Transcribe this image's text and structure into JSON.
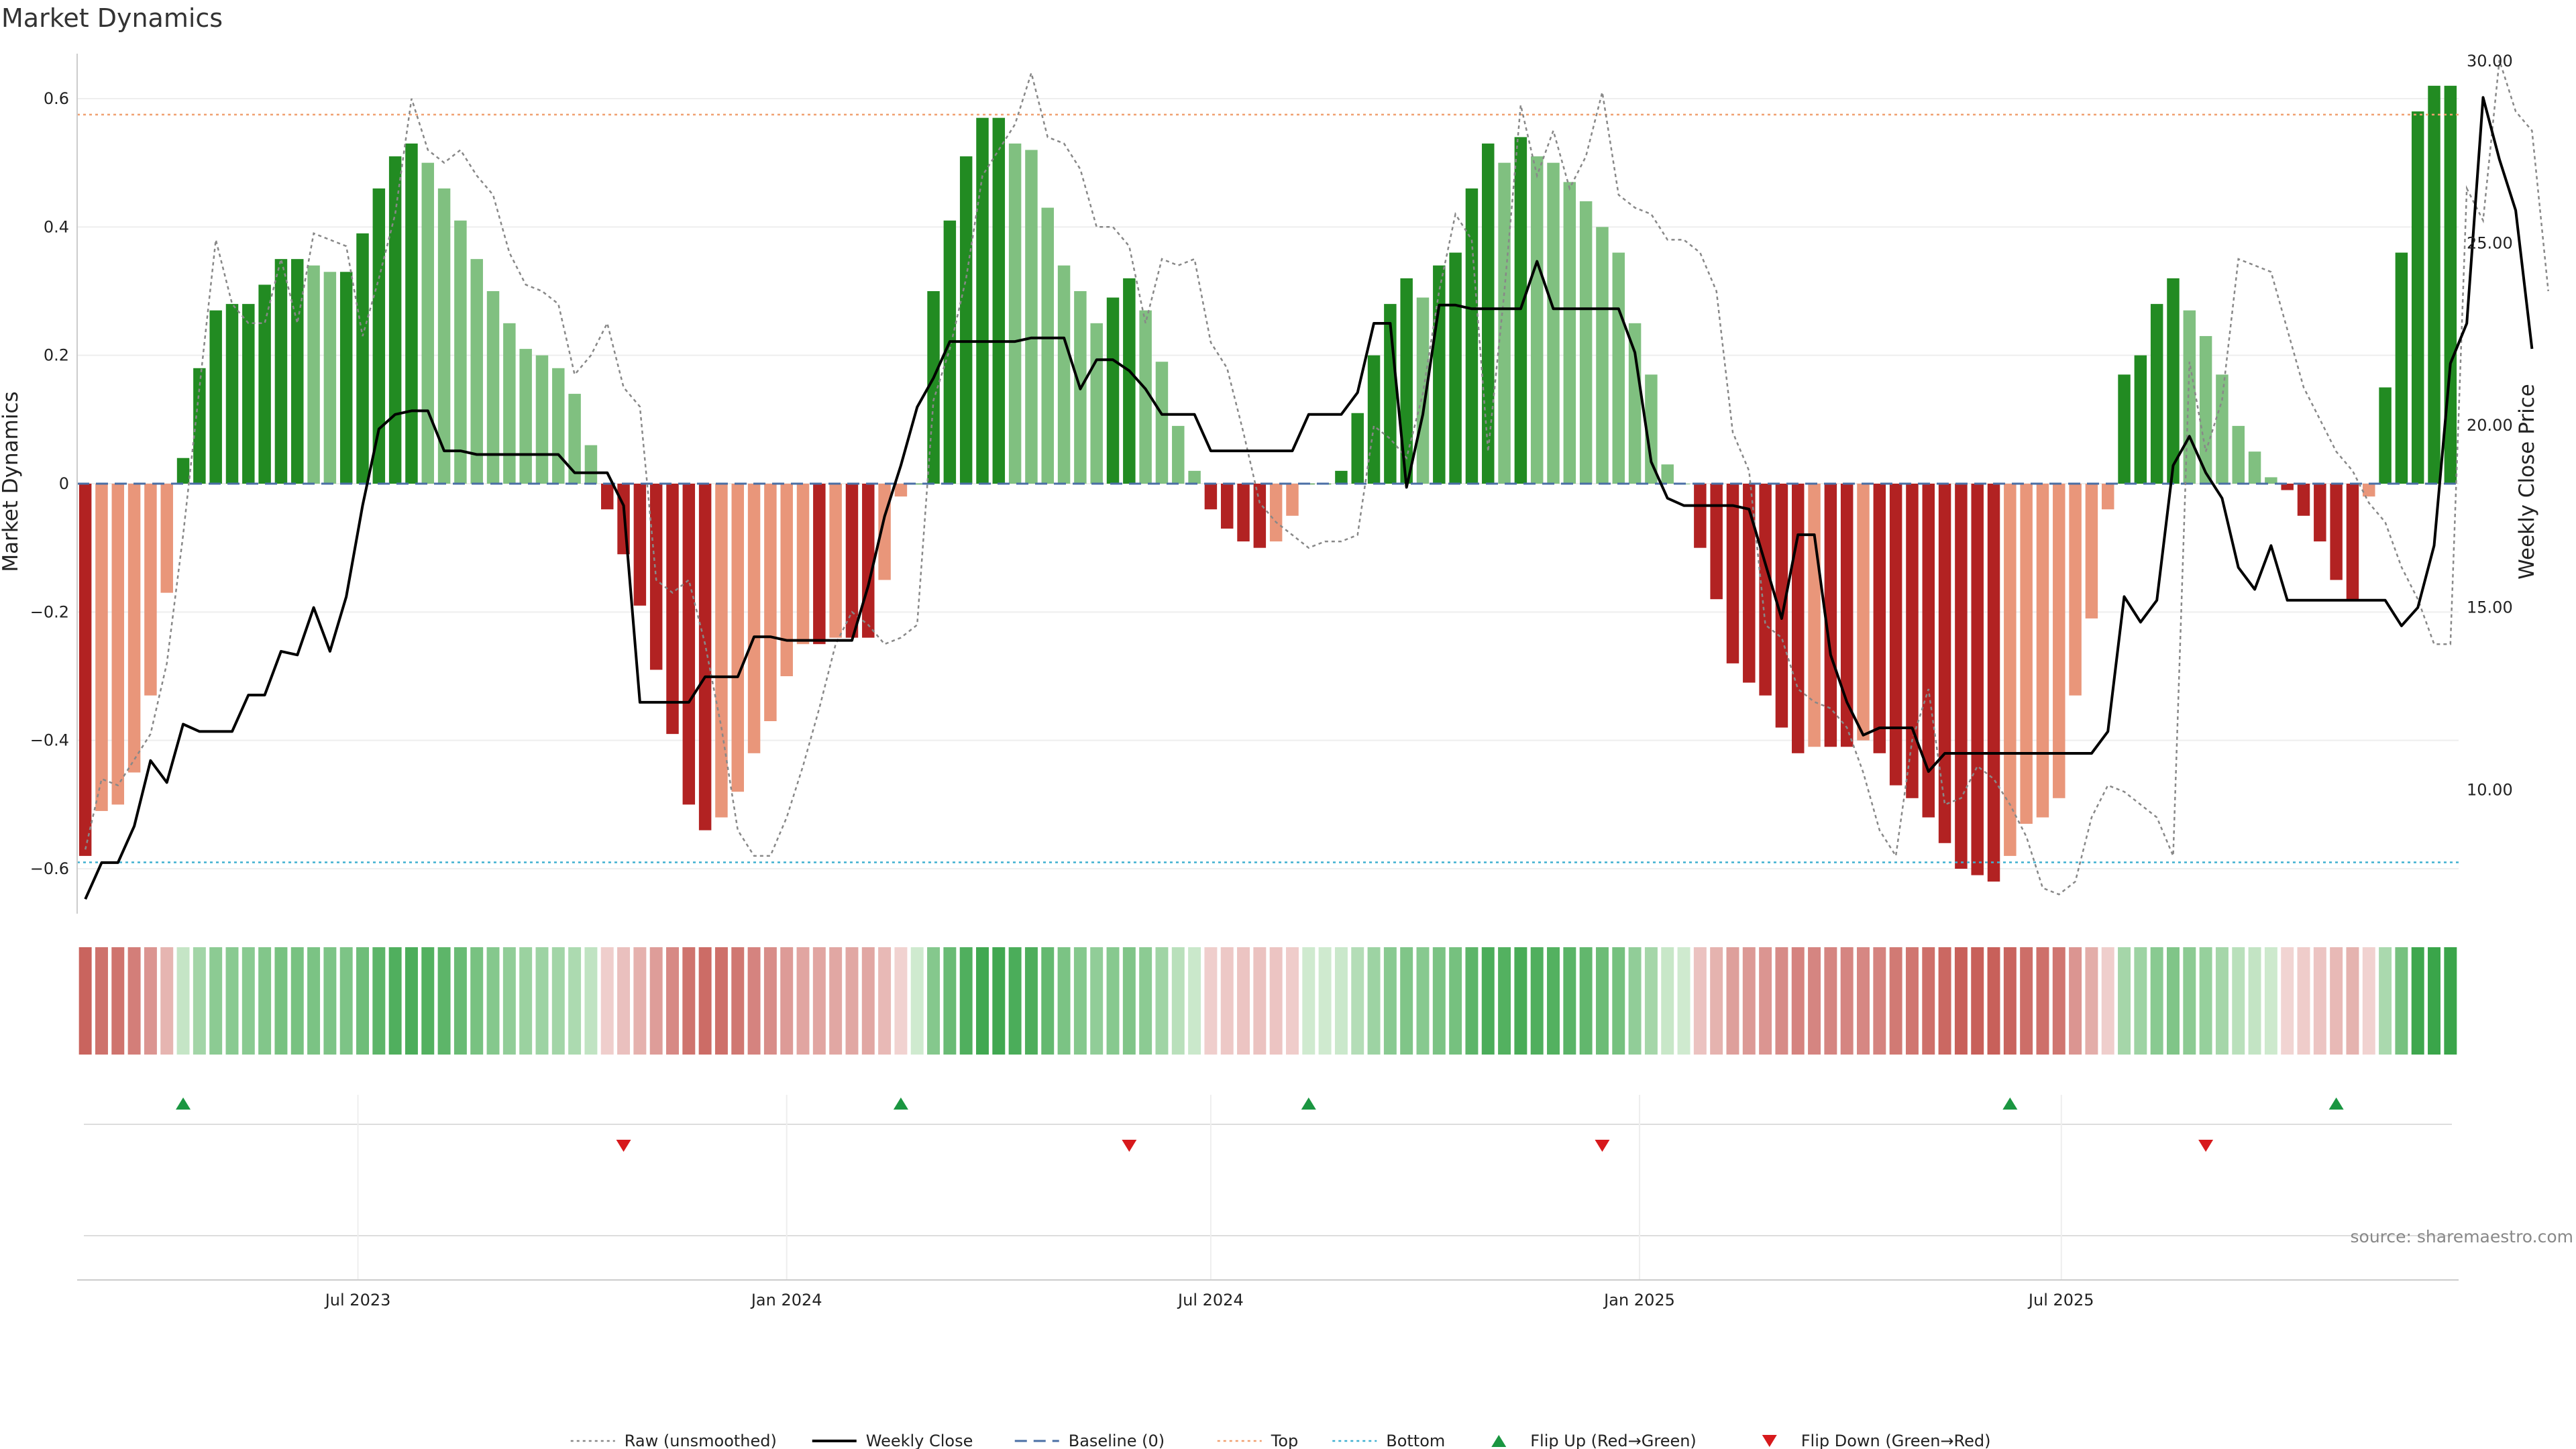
{
  "chart_data": {
    "type": "bar",
    "title": "Market Dynamics",
    "ylabel_left": "Market Dynamics",
    "ylabel_right": "Weekly Close Price",
    "ylim_left": [
      -0.67,
      0.67
    ],
    "ylim_right": [
      6.6,
      30.2
    ],
    "yticks_left": [
      "0.6",
      "0.4",
      "0.2",
      "0",
      "−0.2",
      "−0.4",
      "−0.6"
    ],
    "yticks_left_values": [
      0.6,
      0.4,
      0.2,
      0,
      -0.2,
      -0.4,
      -0.6
    ],
    "yticks_right": [
      "30.00",
      "25.00",
      "20.00",
      "15.00",
      "10.00"
    ],
    "yticks_right_values": [
      30,
      25,
      20,
      15,
      10
    ],
    "x_start": "2023-03-06",
    "x_step_days": 7,
    "x_ticks": [
      {
        "date": "2023-07-01",
        "label": "Jul 2023"
      },
      {
        "date": "2024-01-01",
        "label": "Jan 2024"
      },
      {
        "date": "2024-07-01",
        "label": "Jul 2024"
      },
      {
        "date": "2025-01-01",
        "label": "Jan 2025"
      },
      {
        "date": "2025-07-01",
        "label": "Jul 2025"
      }
    ],
    "top_level": 0.575,
    "bottom_level": -0.59,
    "baseline": 0,
    "series": [
      {
        "name": "Raw (unsmoothed)",
        "values": [
          -0.57,
          -0.46,
          -0.47,
          -0.43,
          -0.39,
          -0.28,
          -0.08,
          0.15,
          0.38,
          0.28,
          0.25,
          0.25,
          0.35,
          0.25,
          0.39,
          0.38,
          0.37,
          0.23,
          0.32,
          0.42,
          0.6,
          0.52,
          0.5,
          0.52,
          0.48,
          0.45,
          0.36,
          0.31,
          0.3,
          0.28,
          0.17,
          0.2,
          0.25,
          0.15,
          0.12,
          -0.15,
          -0.17,
          -0.15,
          -0.25,
          -0.38,
          -0.54,
          -0.58,
          -0.58,
          -0.52,
          -0.44,
          -0.35,
          -0.25,
          -0.2,
          -0.22,
          -0.25,
          -0.24,
          -0.22,
          0.13,
          0.21,
          0.32,
          0.48,
          0.52,
          0.56,
          0.64,
          0.54,
          0.53,
          0.49,
          0.4,
          0.4,
          0.37,
          0.25,
          0.35,
          0.34,
          0.35,
          0.22,
          0.18,
          0.08,
          -0.03,
          -0.06,
          -0.08,
          -0.1,
          -0.09,
          -0.09,
          -0.08,
          0.09,
          0.07,
          0.04,
          0.14,
          0.3,
          0.42,
          0.38,
          0.05,
          0.3,
          0.59,
          0.48,
          0.55,
          0.46,
          0.51,
          0.61,
          0.45,
          0.43,
          0.42,
          0.38,
          0.38,
          0.36,
          0.3,
          0.08,
          0.02,
          -0.22,
          -0.24,
          -0.32,
          -0.34,
          -0.35,
          -0.38,
          -0.45,
          -0.54,
          -0.58,
          -0.4,
          -0.32,
          -0.5,
          -0.49,
          -0.44,
          -0.46,
          -0.5,
          -0.55,
          -0.63,
          -0.64,
          -0.62,
          -0.52,
          -0.47,
          -0.48,
          -0.5,
          -0.52,
          -0.58,
          0.19,
          0.05,
          0.13,
          0.35,
          0.34,
          0.33,
          0.24,
          0.15,
          0.1,
          0.05,
          0.02,
          -0.03,
          -0.06,
          -0.13,
          -0.18,
          -0.25,
          -0.25,
          0.46,
          0.41,
          0.66,
          0.58,
          0.55,
          0.3
        ]
      },
      {
        "name": "Weekly Close",
        "values": [
          7.0,
          8.0,
          8.0,
          9.0,
          10.8,
          10.2,
          11.8,
          11.6,
          11.6,
          11.6,
          12.6,
          12.6,
          13.8,
          13.7,
          15.0,
          13.8,
          15.3,
          17.8,
          19.9,
          20.3,
          20.4,
          20.4,
          19.3,
          19.3,
          19.2,
          19.2,
          19.2,
          19.2,
          19.2,
          19.2,
          18.7,
          18.7,
          18.7,
          17.8,
          12.4,
          12.4,
          12.4,
          12.4,
          13.1,
          13.1,
          13.1,
          14.2,
          14.2,
          14.1,
          14.1,
          14.1,
          14.1,
          14.1,
          15.6,
          17.5,
          18.9,
          20.5,
          21.3,
          22.3,
          22.3,
          22.3,
          22.3,
          22.3,
          22.4,
          22.4,
          22.4,
          21.0,
          21.8,
          21.8,
          21.5,
          21.0,
          20.3,
          20.3,
          20.3,
          19.3,
          19.3,
          19.3,
          19.3,
          19.3,
          19.3,
          20.3,
          20.3,
          20.3,
          20.9,
          22.8,
          22.8,
          18.3,
          20.3,
          23.3,
          23.3,
          23.2,
          23.2,
          23.2,
          23.2,
          24.5,
          23.2,
          23.2,
          23.2,
          23.2,
          23.2,
          22.0,
          19.0,
          18.0,
          17.8,
          17.8,
          17.8,
          17.8,
          17.7,
          16.2,
          14.7,
          17.0,
          17.0,
          13.7,
          12.4,
          11.5,
          11.7,
          11.7,
          11.7,
          10.5,
          11.0,
          11.0,
          11.0,
          11.0,
          11.0,
          11.0,
          11.0,
          11.0,
          11.0,
          11.0,
          11.6,
          15.3,
          14.6,
          15.2,
          18.9,
          19.7,
          18.7,
          18.0,
          16.1,
          15.5,
          16.7,
          15.2,
          15.2,
          15.2,
          15.2,
          15.2,
          15.2,
          15.2,
          14.5,
          15.0,
          16.7,
          21.7,
          22.8,
          29.0,
          27.3,
          25.9,
          22.1
        ]
      },
      {
        "name": "Market Dynamics",
        "values": [
          -0.58,
          -0.51,
          -0.5,
          -0.45,
          -0.33,
          -0.17,
          0.04,
          0.18,
          0.27,
          0.28,
          0.28,
          0.31,
          0.35,
          0.35,
          0.34,
          0.33,
          0.33,
          0.39,
          0.46,
          0.51,
          0.53,
          0.5,
          0.46,
          0.41,
          0.35,
          0.3,
          0.25,
          0.21,
          0.2,
          0.18,
          0.14,
          0.06,
          -0.04,
          -0.11,
          -0.19,
          -0.29,
          -0.39,
          -0.5,
          -0.54,
          -0.52,
          -0.48,
          -0.42,
          -0.37,
          -0.3,
          -0.25,
          -0.25,
          -0.24,
          -0.24,
          -0.24,
          -0.15,
          -0.02,
          0.0,
          0.3,
          0.41,
          0.51,
          0.57,
          0.57,
          0.53,
          0.52,
          0.43,
          0.34,
          0.3,
          0.25,
          0.29,
          0.32,
          0.27,
          0.19,
          0.09,
          0.02,
          -0.04,
          -0.07,
          -0.09,
          -0.1,
          -0.09,
          -0.05,
          0.0,
          0.0,
          0.02,
          0.11,
          0.2,
          0.28,
          0.32,
          0.29,
          0.34,
          0.36,
          0.46,
          0.53,
          0.5,
          0.54,
          0.51,
          0.5,
          0.47,
          0.44,
          0.4,
          0.36,
          0.25,
          0.17,
          0.03,
          0.0,
          -0.1,
          -0.18,
          -0.28,
          -0.31,
          -0.33,
          -0.38,
          -0.42,
          -0.41,
          -0.41,
          -0.41,
          -0.4,
          -0.42,
          -0.47,
          -0.49,
          -0.52,
          -0.56,
          -0.6,
          -0.61,
          -0.62,
          -0.58,
          -0.53,
          -0.52,
          -0.49,
          -0.33,
          -0.21,
          -0.04,
          0.17,
          0.2,
          0.28,
          0.32,
          0.27,
          0.23,
          0.17,
          0.09,
          0.05,
          0.01,
          -0.01,
          -0.05,
          -0.09,
          -0.15,
          -0.18,
          -0.02,
          0.15,
          0.36,
          0.58,
          0.62,
          0.62
        ]
      }
    ],
    "flip_up": [
      "2023-04-17",
      "2024-02-19",
      "2024-08-12",
      "2025-06-09",
      "2025-10-27"
    ],
    "flip_down": [
      "2023-10-23",
      "2024-05-27",
      "2024-12-16",
      "2025-09-01"
    ],
    "legend": [
      {
        "label": "Raw (unsmoothed)",
        "style": "dotted-line",
        "color": "#888888"
      },
      {
        "label": "Weekly Close",
        "style": "solid-line",
        "color": "#000000"
      },
      {
        "label": "Baseline (0)",
        "style": "dashed-line",
        "color": "#4a6fa5"
      },
      {
        "label": "Top",
        "style": "dotted-line",
        "color": "#f0a070"
      },
      {
        "label": "Bottom",
        "style": "dotted-line",
        "color": "#40b0d0"
      },
      {
        "label": "Flip Up (Red→Green)",
        "style": "triangle-up",
        "color": "#1a9641"
      },
      {
        "label": "Flip Down (Green→Red)",
        "style": "triangle-down",
        "color": "#d7191c"
      }
    ],
    "legend_position": "bottom-center",
    "source": "source: sharemaestro.com",
    "colors": {
      "pos_strong": "#228b22",
      "pos_weak": "#80c080",
      "neg_strong": "#b22222",
      "neg_weak": "#e9967a",
      "raw": "#888888",
      "close": "#000000",
      "baseline": "#4a6fa5",
      "top": "#f0a070",
      "bottom": "#40b0d0",
      "flip_up": "#1a9641",
      "flip_down": "#d7191c"
    }
  }
}
